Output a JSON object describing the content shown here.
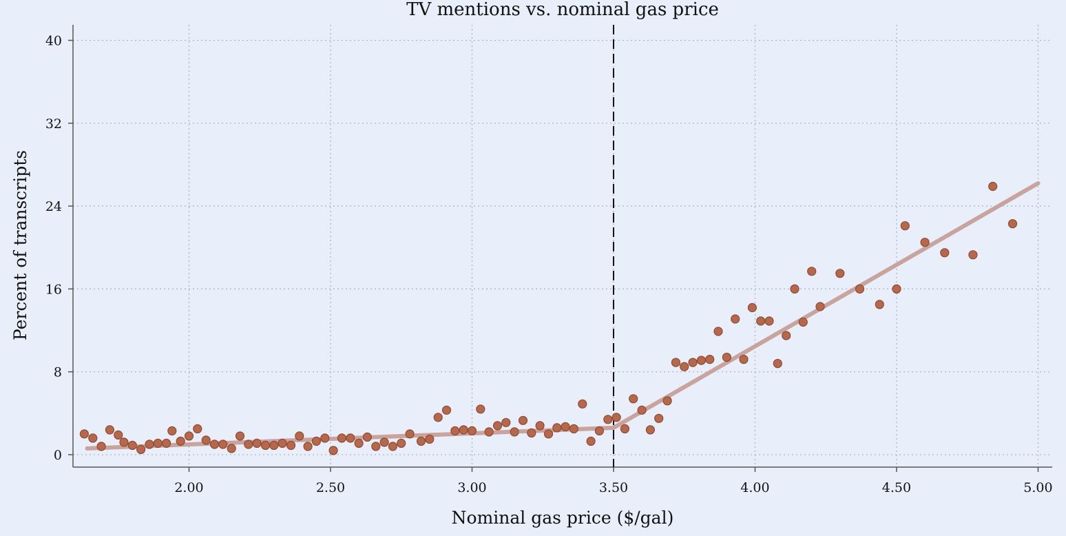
{
  "chart_data": {
    "type": "scatter",
    "title": "TV mentions vs. nominal gas price",
    "xlabel": "Nominal gas price ($/gal)",
    "ylabel": "Percent of transcripts",
    "xlim": [
      1.59,
      5.05
    ],
    "ylim": [
      -1.2,
      41.5
    ],
    "x_ticks": [
      2.0,
      2.5,
      3.0,
      3.5,
      4.0,
      4.5,
      5.0
    ],
    "x_tick_labels": [
      "2.00",
      "2.50",
      "3.00",
      "3.50",
      "4.00",
      "4.50",
      "5.00"
    ],
    "y_ticks": [
      0,
      8,
      16,
      24,
      32,
      40
    ],
    "y_tick_labels": [
      "0",
      "8",
      "16",
      "24",
      "32",
      "40"
    ],
    "grid": true,
    "threshold_x": 3.5,
    "fit_line": [
      [
        1.64,
        0.6
      ],
      [
        3.5,
        2.6
      ],
      [
        5.0,
        26.2
      ]
    ],
    "points": [
      [
        1.63,
        2.0
      ],
      [
        1.66,
        1.6
      ],
      [
        1.69,
        0.8
      ],
      [
        1.72,
        2.4
      ],
      [
        1.75,
        1.9
      ],
      [
        1.77,
        1.2
      ],
      [
        1.8,
        0.9
      ],
      [
        1.83,
        0.5
      ],
      [
        1.86,
        1.0
      ],
      [
        1.89,
        1.1
      ],
      [
        1.92,
        1.1
      ],
      [
        1.94,
        2.3
      ],
      [
        1.97,
        1.3
      ],
      [
        2.0,
        1.8
      ],
      [
        2.03,
        2.5
      ],
      [
        2.06,
        1.4
      ],
      [
        2.09,
        1.0
      ],
      [
        2.12,
        1.0
      ],
      [
        2.15,
        0.6
      ],
      [
        2.18,
        1.8
      ],
      [
        2.21,
        1.0
      ],
      [
        2.24,
        1.1
      ],
      [
        2.27,
        0.9
      ],
      [
        2.3,
        0.9
      ],
      [
        2.33,
        1.1
      ],
      [
        2.36,
        0.9
      ],
      [
        2.39,
        1.8
      ],
      [
        2.42,
        0.8
      ],
      [
        2.45,
        1.3
      ],
      [
        2.48,
        1.6
      ],
      [
        2.51,
        0.4
      ],
      [
        2.54,
        1.6
      ],
      [
        2.57,
        1.6
      ],
      [
        2.6,
        1.1
      ],
      [
        2.63,
        1.7
      ],
      [
        2.66,
        0.8
      ],
      [
        2.69,
        1.2
      ],
      [
        2.72,
        0.8
      ],
      [
        2.75,
        1.1
      ],
      [
        2.78,
        2.0
      ],
      [
        2.82,
        1.3
      ],
      [
        2.85,
        1.5
      ],
      [
        2.88,
        3.6
      ],
      [
        2.91,
        4.3
      ],
      [
        2.94,
        2.3
      ],
      [
        2.97,
        2.4
      ],
      [
        3.0,
        2.3
      ],
      [
        3.03,
        4.4
      ],
      [
        3.06,
        2.2
      ],
      [
        3.09,
        2.8
      ],
      [
        3.12,
        3.1
      ],
      [
        3.15,
        2.2
      ],
      [
        3.18,
        3.3
      ],
      [
        3.21,
        2.1
      ],
      [
        3.24,
        2.8
      ],
      [
        3.27,
        2.0
      ],
      [
        3.3,
        2.6
      ],
      [
        3.33,
        2.7
      ],
      [
        3.36,
        2.5
      ],
      [
        3.39,
        4.9
      ],
      [
        3.42,
        1.3
      ],
      [
        3.45,
        2.3
      ],
      [
        3.48,
        3.4
      ],
      [
        3.51,
        3.6
      ],
      [
        3.54,
        2.5
      ],
      [
        3.57,
        5.4
      ],
      [
        3.6,
        4.3
      ],
      [
        3.63,
        2.4
      ],
      [
        3.66,
        3.5
      ],
      [
        3.69,
        5.2
      ],
      [
        3.72,
        8.9
      ],
      [
        3.75,
        8.5
      ],
      [
        3.78,
        8.9
      ],
      [
        3.81,
        9.1
      ],
      [
        3.84,
        9.2
      ],
      [
        3.87,
        11.9
      ],
      [
        3.9,
        9.4
      ],
      [
        3.93,
        13.1
      ],
      [
        3.96,
        9.2
      ],
      [
        3.99,
        14.2
      ],
      [
        4.02,
        12.9
      ],
      [
        4.05,
        12.9
      ],
      [
        4.08,
        8.8
      ],
      [
        4.11,
        11.5
      ],
      [
        4.14,
        16.0
      ],
      [
        4.17,
        12.8
      ],
      [
        4.2,
        17.7
      ],
      [
        4.23,
        14.3
      ],
      [
        4.3,
        17.5
      ],
      [
        4.37,
        16.0
      ],
      [
        4.44,
        14.5
      ],
      [
        4.5,
        16.0
      ],
      [
        4.53,
        22.1
      ],
      [
        4.6,
        20.5
      ],
      [
        4.67,
        19.5
      ],
      [
        4.77,
        19.3
      ],
      [
        4.84,
        25.9
      ],
      [
        4.91,
        22.3
      ]
    ]
  }
}
